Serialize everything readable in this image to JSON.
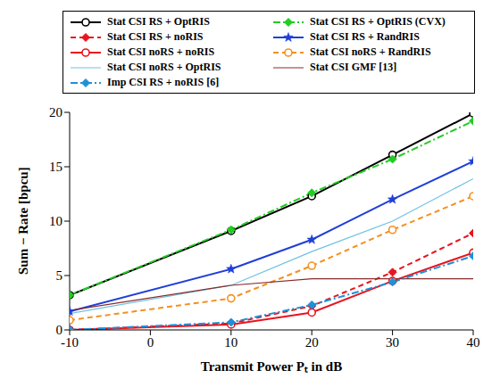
{
  "chart_data": {
    "type": "line",
    "x_label": "Transmit Power Pₜ in dB",
    "y_label": "Sum − Rate [bpcu]",
    "x": [
      -10,
      10,
      20,
      30,
      40
    ],
    "xlim": [
      -10,
      40
    ],
    "xticks": [
      -10,
      0,
      10,
      20,
      30,
      40
    ],
    "ylim": [
      0,
      20
    ],
    "yticks": [
      0,
      5,
      10,
      15,
      20
    ],
    "grid": false,
    "legend": "top",
    "series": [
      {
        "name": "Stat CSI RS + OptRIS",
        "color": "#000000",
        "marker": "circle",
        "line_style": "solid",
        "values": [
          3.2,
          9.1,
          12.3,
          16.1,
          19.9
        ]
      },
      {
        "name": "Stat CSI RS + OptRIS (CVX)",
        "color": "#22cc22",
        "marker": "diamond",
        "line_style": "dashdot",
        "values": [
          3.2,
          9.2,
          12.6,
          15.7,
          19.2
        ]
      },
      {
        "name": "Stat CSI RS + noRIS",
        "color": "#e8141e",
        "marker": "diamond",
        "line_style": "dashed",
        "values": [
          0,
          0.6,
          2.2,
          5.3,
          8.9
        ]
      },
      {
        "name": "Stat CSI RS + RandRIS",
        "color": "#1f3fd8",
        "marker": "star",
        "line_style": "solid",
        "values": [
          1.7,
          5.6,
          8.3,
          12.0,
          15.5
        ]
      },
      {
        "name": "Stat CSI noRS + noRIS",
        "color": "#e8141e",
        "marker": "circle",
        "line_style": "solid",
        "values": [
          0,
          0.5,
          1.6,
          4.5,
          7.1
        ]
      },
      {
        "name": "Stat CSI noRS + RandRIS",
        "color": "#f5901e",
        "marker": "circle",
        "line_style": "dashed",
        "values": [
          0.9,
          2.9,
          5.9,
          9.2,
          12.3
        ]
      },
      {
        "name": "Stat CSI noRS + OptRIS",
        "color": "#6ec1e4",
        "marker": "none",
        "line_style": "solid",
        "values": [
          1.5,
          4.1,
          7.2,
          10.0,
          13.9
        ]
      },
      {
        "name": "Stat CSI GMF [13]",
        "color": "#8b2b2b",
        "marker": "none",
        "line_style": "solid",
        "values": [
          1.8,
          4.1,
          4.7,
          4.7,
          4.7
        ]
      },
      {
        "name": "Imp CSI RS + noRIS [6]",
        "color": "#1e90d8",
        "marker": "diamond",
        "line_style": "dashdot",
        "values": [
          0,
          0.7,
          2.3,
          4.4,
          6.8
        ]
      }
    ]
  }
}
